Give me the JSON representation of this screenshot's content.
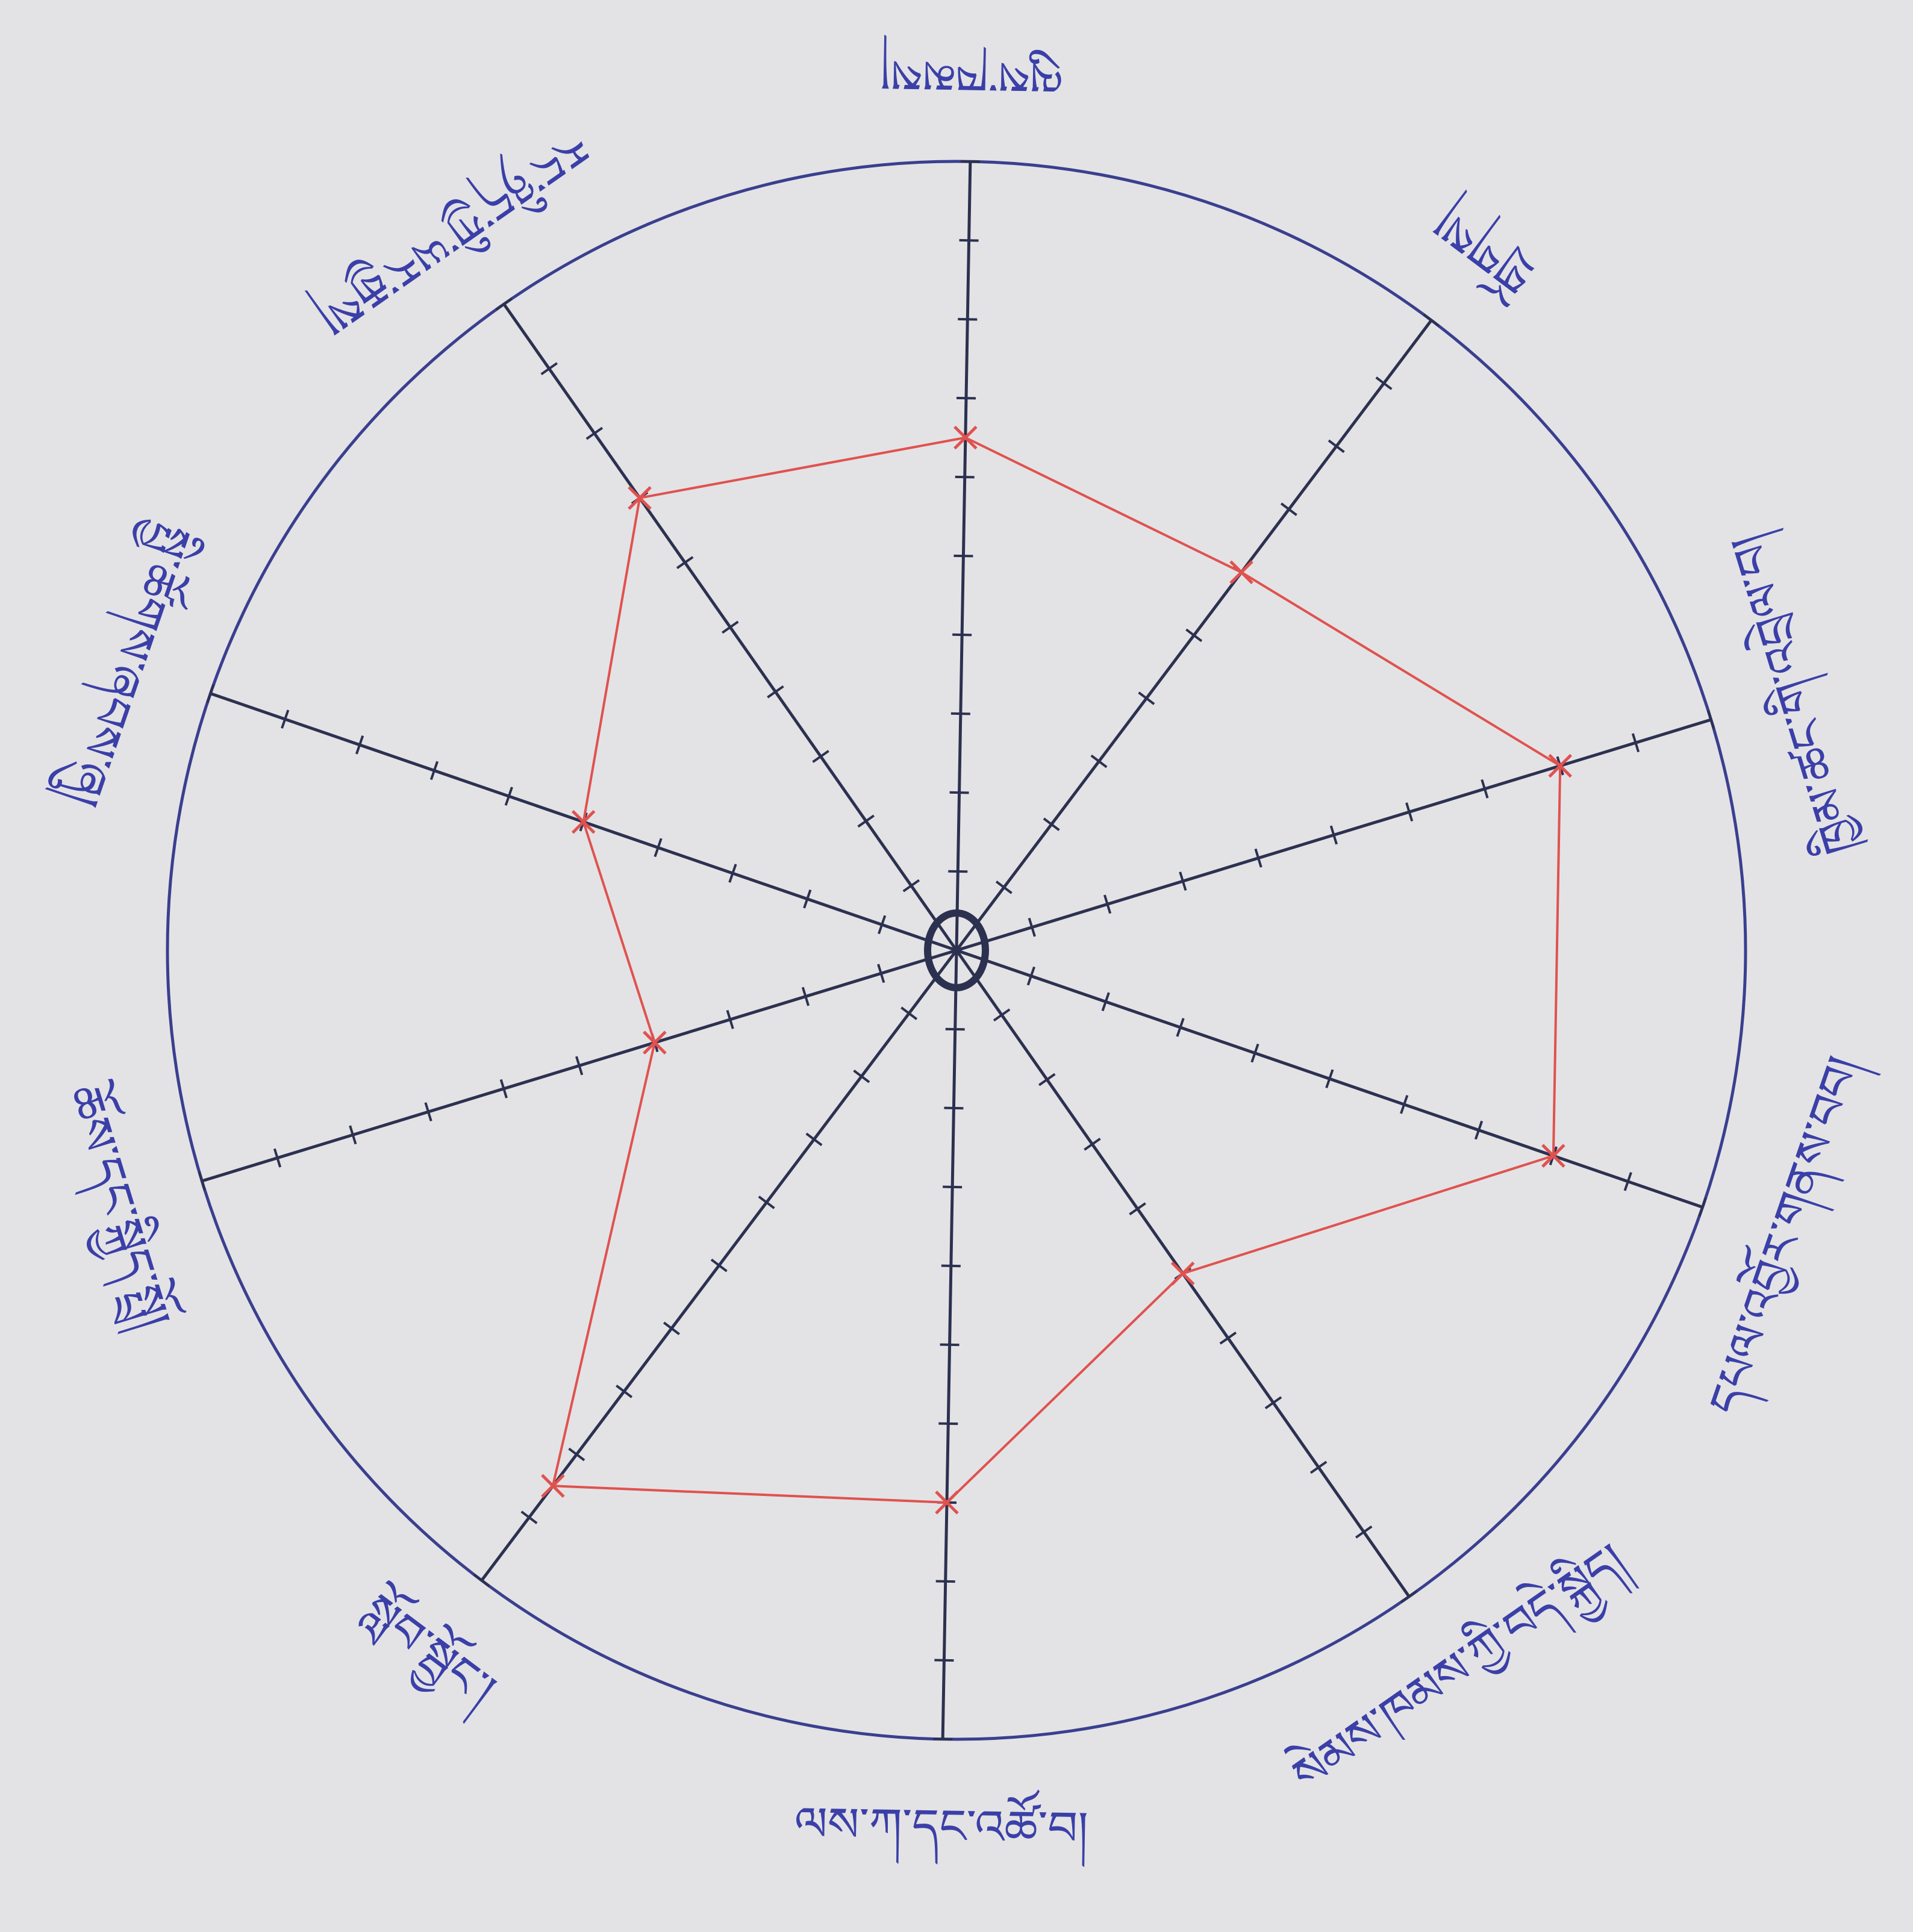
{
  "chart_data": {
    "type": "radar",
    "categories": [
      "ལུས་ཁམས།",
      "གྲོགས།",
      "ཁྱིམ་ཚང་གི་འབྲེལ་བ།",
      "དཔལ་འབྱོར་གནས་བབ།",
      "སེམས་ཁམས་ཀྱི་བདེ་སྐྱིད།",
      "ལས་ཀ་དང་འཚོ་བ།",
      "སློབ་སྦྱོང་།",
      "ཆོས་དང་སྐྱིད་སྤྲོ།",
      "སྤྱི་ཚོགས་ཞབས་ཞུ།",
      "རང་ཉིད་ཀྱི་ཡར་རྒྱས།"
    ],
    "series": [
      {
        "color": "#e0524f",
        "values": [
          6.5,
          6,
          8,
          8,
          5,
          7,
          8.5,
          4,
          5,
          7
        ]
      }
    ],
    "rlim": [
      0,
      10
    ],
    "rticks": [
      1,
      2,
      3,
      4,
      5,
      6,
      7,
      8,
      9,
      10
    ]
  }
}
